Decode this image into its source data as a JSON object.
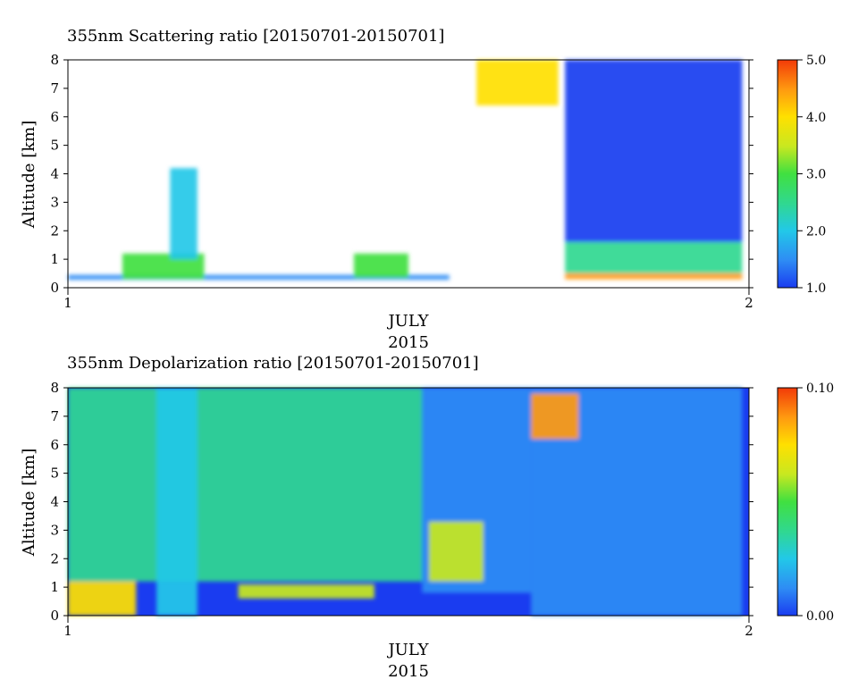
{
  "chart_data": [
    {
      "type": "heatmap",
      "title": "355nm Scattering ratio [20150701-20150701]",
      "ylabel": "Altitude [km]",
      "xlabel": "JULY",
      "xlabel2": "2015",
      "x_ticks": [
        "1",
        "2"
      ],
      "xlim": [
        1,
        2
      ],
      "ylim": [
        0,
        8
      ],
      "y_ticks": [
        0,
        1,
        2,
        3,
        4,
        5,
        6,
        7,
        8
      ],
      "colorbar": {
        "range": [
          1.0,
          5.0
        ],
        "tick_values": [
          1.0,
          2.0,
          3.0,
          4.0,
          5.0
        ],
        "tick_labels": [
          "1.0",
          "2.0",
          "3.0",
          "4.0",
          "5.0"
        ]
      },
      "grid": false,
      "colors": [
        "#1a3cf0",
        "#2e8cf4",
        "#22c8e8",
        "#30d890",
        "#40e040",
        "#c8e820",
        "#ffe000",
        "#ff9a10",
        "#f23a08"
      ],
      "regions": [
        {
          "x": [
            1.0,
            1.56
          ],
          "y": [
            0.28,
            0.45
          ],
          "value": 1.7
        },
        {
          "x": [
            1.08,
            1.2
          ],
          "y": [
            0.3,
            1.2
          ],
          "value": 2.8
        },
        {
          "x": [
            1.15,
            1.19
          ],
          "y": [
            1.0,
            4.2
          ],
          "value": 2.2
        },
        {
          "x": [
            1.42,
            1.5
          ],
          "y": [
            0.35,
            1.2
          ],
          "value": 3.2
        },
        {
          "x": [
            1.6,
            1.72
          ],
          "y": [
            6.4,
            8.0
          ],
          "value": 4.0
        },
        {
          "x": [
            1.73,
            1.99
          ],
          "y": [
            1.6,
            8.0
          ],
          "value": 1.2
        },
        {
          "x": [
            1.73,
            1.99
          ],
          "y": [
            0.5,
            1.6
          ],
          "value": 2.3
        },
        {
          "x": [
            1.73,
            1.99
          ],
          "y": [
            0.3,
            0.5
          ],
          "value": 4.4
        }
      ]
    },
    {
      "type": "heatmap",
      "title": "355nm Depolarization ratio [20150701-20150701]",
      "ylabel": "Altitude [km]",
      "xlabel": "JULY",
      "xlabel2": "2015",
      "x_ticks": [
        "1",
        "2"
      ],
      "xlim": [
        1,
        2
      ],
      "ylim": [
        0,
        8
      ],
      "y_ticks": [
        0,
        1,
        2,
        3,
        4,
        5,
        6,
        7,
        8
      ],
      "colorbar": {
        "range": [
          0.0,
          0.1
        ],
        "tick_values": [
          0.0,
          0.1
        ],
        "tick_labels": [
          "0.00",
          "0.10"
        ]
      },
      "grid": false,
      "colors": [
        "#1a3cf0",
        "#2e8cf4",
        "#22c8e8",
        "#30d890",
        "#40e040",
        "#c8e820",
        "#ffe000",
        "#ff9a10",
        "#f23a08"
      ],
      "regions": [
        {
          "x": [
            1.0,
            1.52
          ],
          "y": [
            1.2,
            8.0
          ],
          "value": 0.04
        },
        {
          "x": [
            1.52,
            1.68
          ],
          "y": [
            0.8,
            8.0
          ],
          "value": 0.015
        },
        {
          "x": [
            1.68,
            1.99
          ],
          "y": [
            0.0,
            8.0
          ],
          "value": 0.01
        },
        {
          "x": [
            1.0,
            1.1
          ],
          "y": [
            0.0,
            1.2
          ],
          "value": 0.075
        },
        {
          "x": [
            1.13,
            1.19
          ],
          "y": [
            0.0,
            8.0
          ],
          "value": 0.02
        },
        {
          "x": [
            1.25,
            1.45
          ],
          "y": [
            0.6,
            1.1
          ],
          "value": 0.06
        },
        {
          "x": [
            1.53,
            1.61
          ],
          "y": [
            1.2,
            3.3
          ],
          "value": 0.065
        },
        {
          "x": [
            1.68,
            1.75
          ],
          "y": [
            6.2,
            7.8
          ],
          "value": 0.09
        }
      ]
    }
  ]
}
